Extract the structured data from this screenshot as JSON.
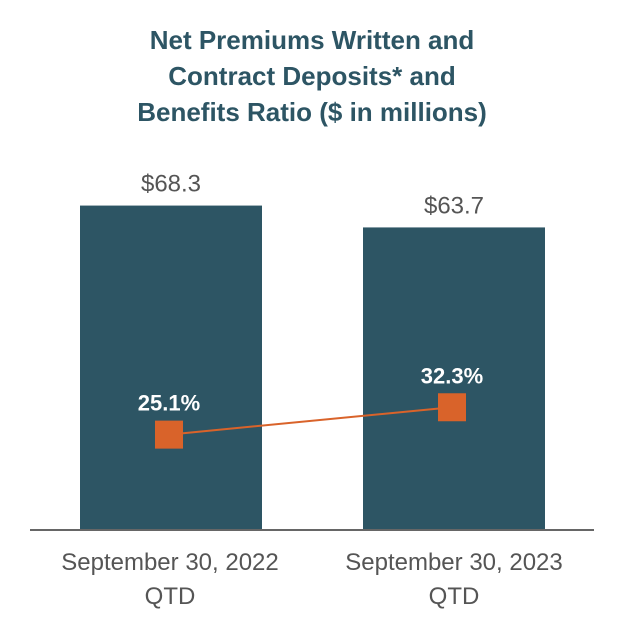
{
  "title_lines": [
    "Net Premiums Written and",
    "Contract Deposits* and",
    "Benefits Ratio ($ in millions)"
  ],
  "chart_data": {
    "type": "bar",
    "categories": [
      {
        "line1": "September 30, 2022",
        "line2": "QTD"
      },
      {
        "line1": "September 30, 2023",
        "line2": "QTD"
      }
    ],
    "bar_series": {
      "values": [
        68.3,
        63.7
      ],
      "labels": [
        "$68.3",
        "$63.7"
      ],
      "color": "#2d5564"
    },
    "line_series": {
      "values": [
        25.1,
        32.3
      ],
      "labels": [
        "25.1%",
        "32.3%"
      ],
      "color": "#d9632a",
      "label_color": "#ffffff"
    },
    "ylim_bars": [
      0,
      80
    ],
    "ylim_ratio": [
      0,
      100
    ],
    "grid": false,
    "legend": "none"
  }
}
